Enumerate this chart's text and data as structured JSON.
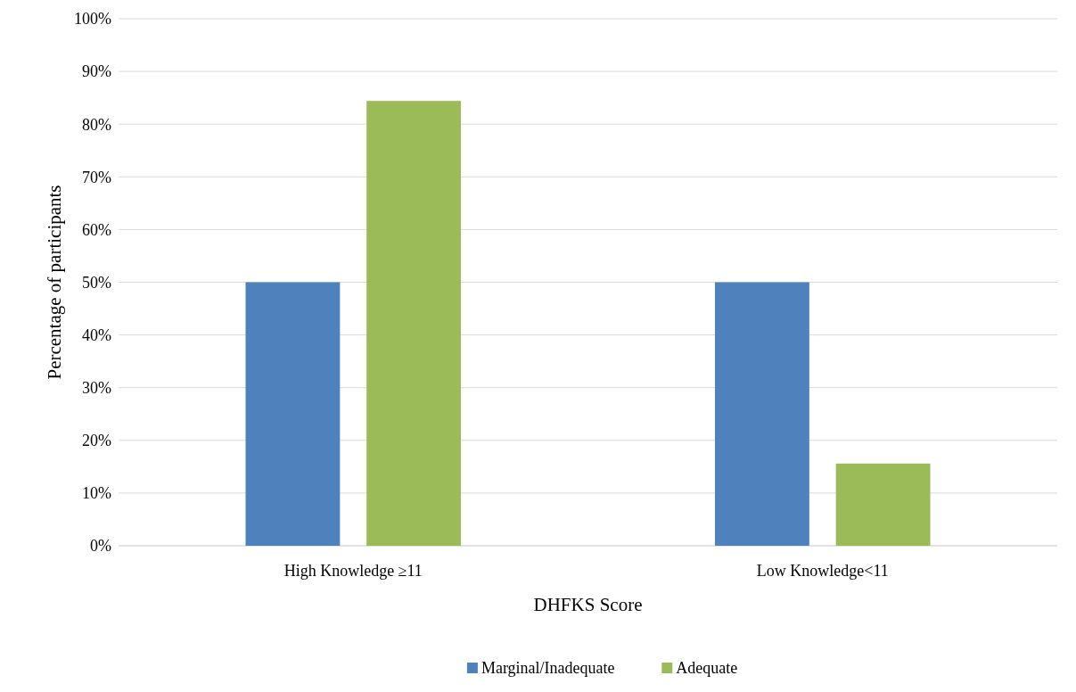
{
  "chart_data": {
    "type": "bar",
    "xlabel": "DHFKS Score",
    "ylabel": "Percentage of participants",
    "categories": [
      "High Knowledge ≥11",
      "Low Knowledge<11"
    ],
    "series": [
      {
        "name": "Marginal/Inadequate",
        "color": "#4f81bd",
        "values": [
          50,
          50
        ]
      },
      {
        "name": "Adequate",
        "color": "#9bbb59",
        "values": [
          84.4,
          15.6
        ]
      }
    ],
    "ylim": [
      0,
      100
    ],
    "yticks": [
      {
        "value": 0,
        "label": "0%"
      },
      {
        "value": 10,
        "label": "10%"
      },
      {
        "value": 20,
        "label": "20%"
      },
      {
        "value": 30,
        "label": "30%"
      },
      {
        "value": 40,
        "label": "40%"
      },
      {
        "value": 50,
        "label": "50%"
      },
      {
        "value": 60,
        "label": "60%"
      },
      {
        "value": 70,
        "label": "70%"
      },
      {
        "value": 80,
        "label": "80%"
      },
      {
        "value": 90,
        "label": "90%"
      },
      {
        "value": 100,
        "label": "100%"
      }
    ],
    "grid": "y",
    "legend": "bottom"
  }
}
